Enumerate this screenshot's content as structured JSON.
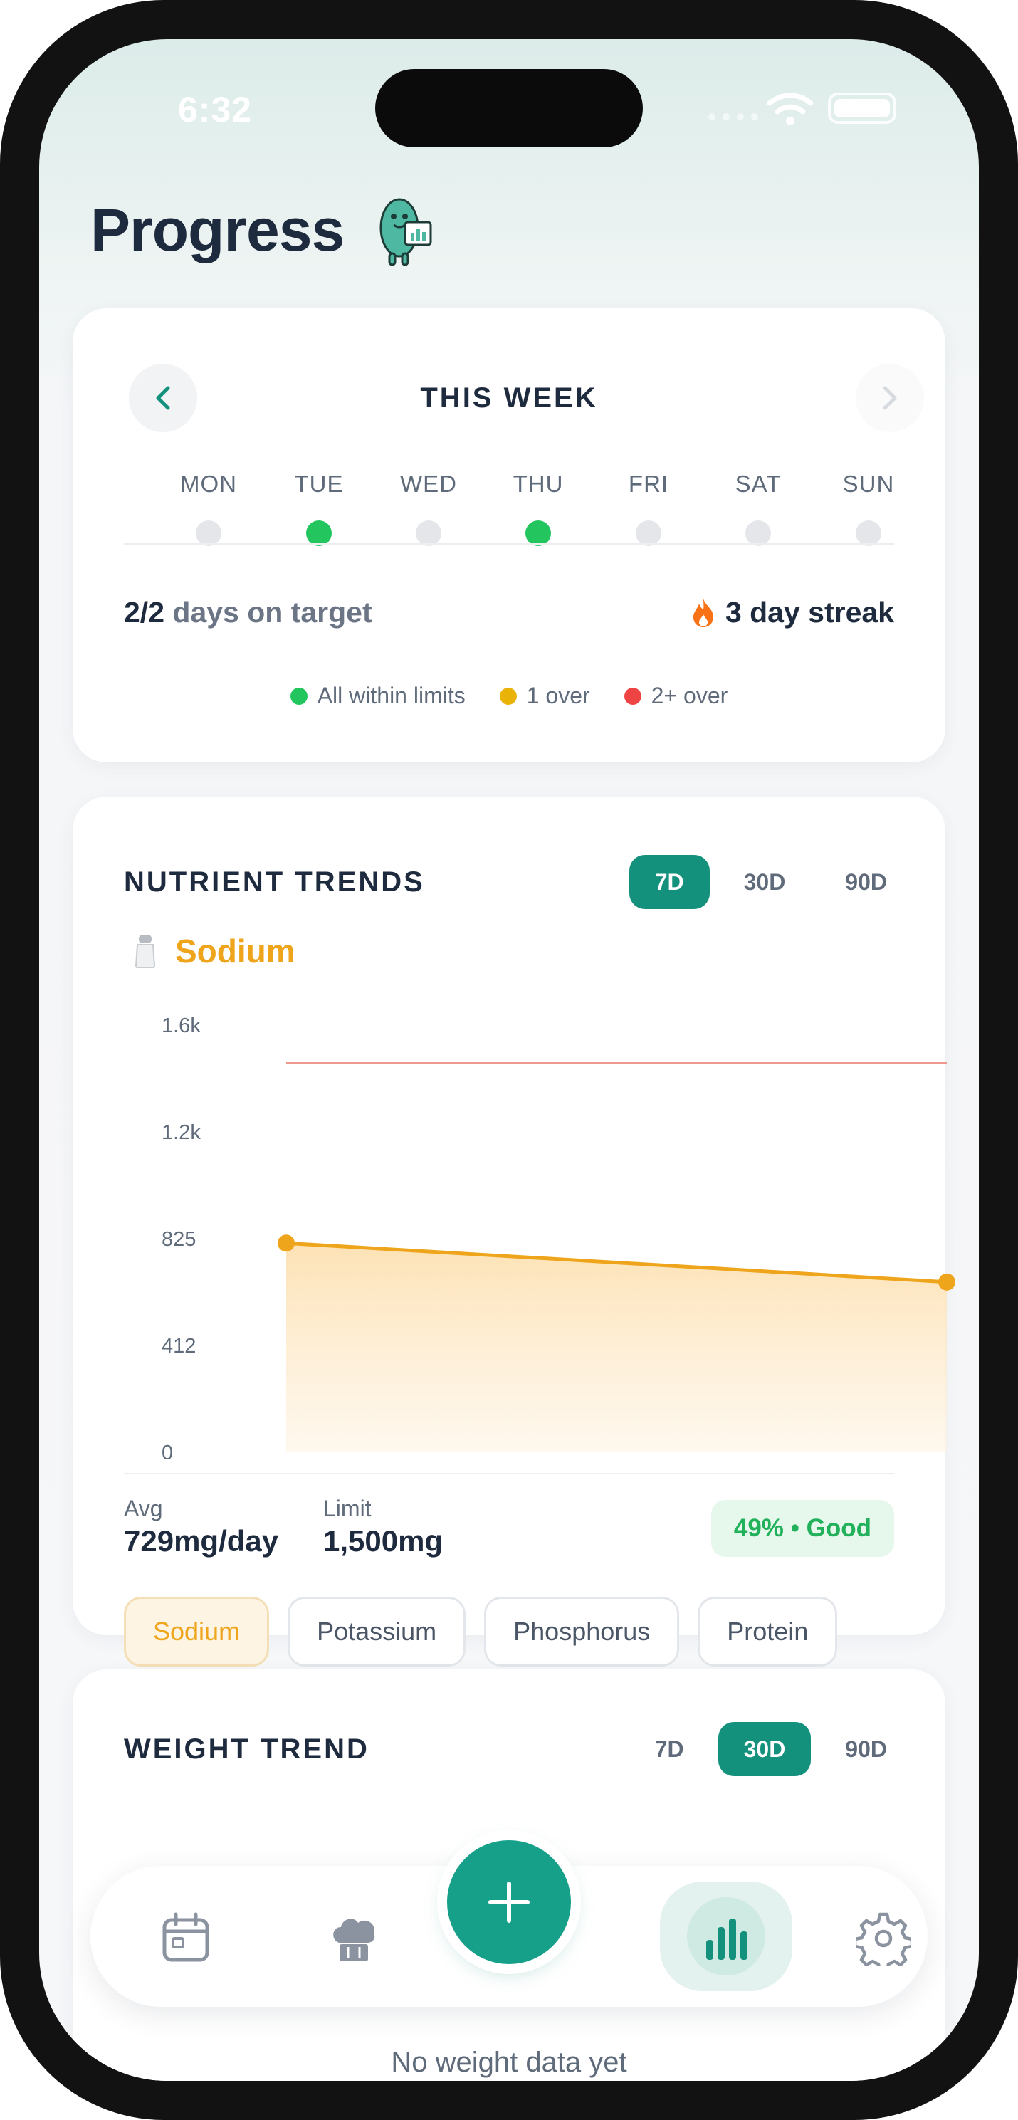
{
  "status_bar": {
    "time": "6:32"
  },
  "header": {
    "title": "Progress",
    "mascot_icon": "bean-mascot-chart-icon"
  },
  "week": {
    "label": "THIS WEEK",
    "days": [
      {
        "name": "MON",
        "on_target": false
      },
      {
        "name": "TUE",
        "on_target": true
      },
      {
        "name": "WED",
        "on_target": false
      },
      {
        "name": "THU",
        "on_target": true
      },
      {
        "name": "FRI",
        "on_target": false
      },
      {
        "name": "SAT",
        "on_target": false
      },
      {
        "name": "SUN",
        "on_target": false
      }
    ],
    "on_target_count": "2/2",
    "on_target_text": "days on target",
    "streak": "3 day streak",
    "legend": [
      {
        "label": "All within limits",
        "color": "#22c55e"
      },
      {
        "label": "1 over",
        "color": "#eab308"
      },
      {
        "label": "2+ over",
        "color": "#ef4444"
      }
    ]
  },
  "nutrient_trends": {
    "title": "NUTRIENT TRENDS",
    "ranges": [
      "7D",
      "30D",
      "90D"
    ],
    "active_range": "7D",
    "nutrient": "Sodium",
    "avg_label": "Avg",
    "avg_value": "729mg/day",
    "limit_label": "Limit",
    "limit_value": "1,500mg",
    "status": "49% • Good",
    "chips": [
      "Sodium",
      "Potassium",
      "Phosphorus",
      "Protein"
    ],
    "active_chip": "Sodium"
  },
  "chart_data": {
    "type": "area",
    "title": "",
    "xlabel": "",
    "ylabel": "",
    "y_ticks": [
      "1.6k",
      "1.2k",
      "825",
      "412",
      "0"
    ],
    "y_tick_values": [
      1650,
      1237,
      825,
      412,
      0
    ],
    "ylim": [
      0,
      1650
    ],
    "x": [
      0,
      1
    ],
    "series": [
      {
        "values": [
          805,
          655
        ]
      }
    ],
    "limit": 1500,
    "colors": {
      "line": "#eea51c",
      "limit": "#ef9a8e"
    },
    "grid": false
  },
  "weight_trend": {
    "title": "WEIGHT TREND",
    "ranges": [
      "7D",
      "30D",
      "90D"
    ],
    "active_range": "30D",
    "empty_text": "No weight data yet"
  },
  "bottom_nav": {
    "items": [
      "calendar-icon",
      "chef-hat-icon",
      "add-icon",
      "bar-chart-icon",
      "settings-gear-icon"
    ],
    "active": "bar-chart-icon"
  },
  "colors": {
    "accent": "#14917d",
    "good": "#22c55e",
    "sodium": "#eea51c"
  }
}
